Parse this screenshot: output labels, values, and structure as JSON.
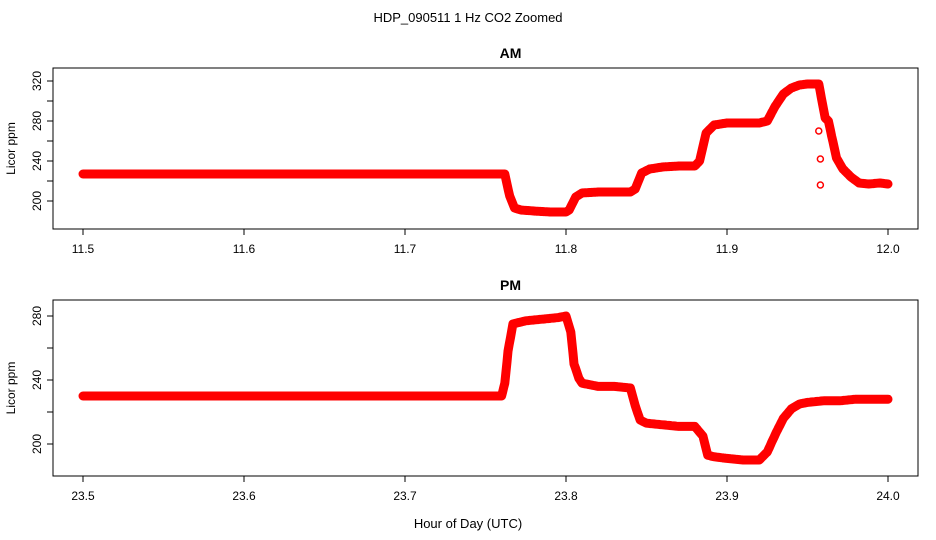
{
  "page": {
    "title": "HDP_090511  1 Hz CO2 Zoomed",
    "xlabel": "Hour of Day (UTC)"
  },
  "chart_data": [
    {
      "type": "scatter",
      "title": "AM",
      "xlabel": "",
      "ylabel": "Licor ppm",
      "xlim": [
        11.5,
        12.0
      ],
      "ylim": [
        180,
        325
      ],
      "x_ticks": [
        "11.5",
        "11.6",
        "11.7",
        "11.8",
        "11.9",
        "12.0"
      ],
      "y_ticks": [
        "200",
        "240",
        "280",
        "320"
      ],
      "y_minor_ticks": [
        220,
        260,
        300
      ],
      "grid": false,
      "color": "#ff0000",
      "marker": "open-circle",
      "x": [
        11.5,
        11.55,
        11.6,
        11.65,
        11.7,
        11.75,
        11.762,
        11.765,
        11.768,
        11.772,
        11.78,
        11.79,
        11.8,
        11.802,
        11.806,
        11.81,
        11.82,
        11.83,
        11.84,
        11.843,
        11.847,
        11.852,
        11.86,
        11.87,
        11.88,
        11.883,
        11.887,
        11.892,
        11.9,
        11.91,
        11.92,
        11.925,
        11.93,
        11.935,
        11.94,
        11.945,
        11.95,
        11.957,
        11.961,
        11.963,
        11.965,
        11.968,
        11.972,
        11.977,
        11.982,
        11.988,
        11.995,
        12.0
      ],
      "y": [
        227,
        227,
        227,
        227,
        227,
        227,
        227,
        205,
        193,
        191,
        190,
        189,
        189,
        191,
        204,
        208,
        209,
        209,
        209,
        212,
        228,
        232,
        234,
        235,
        235,
        240,
        268,
        276,
        278,
        278,
        278,
        280,
        295,
        307,
        313,
        316,
        317,
        317,
        283,
        280,
        265,
        243,
        232,
        224,
        218,
        217,
        218,
        217
      ],
      "outliers": [
        {
          "x": 11.957,
          "y": 270
        },
        {
          "x": 11.958,
          "y": 242
        },
        {
          "x": 11.958,
          "y": 216
        }
      ]
    },
    {
      "type": "scatter",
      "title": "PM",
      "xlabel": "Hour of Day (UTC)",
      "ylabel": "Licor ppm",
      "xlim": [
        23.5,
        24.0
      ],
      "ylim": [
        185,
        285
      ],
      "x_ticks": [
        "23.5",
        "23.6",
        "23.7",
        "23.8",
        "23.9",
        "24.0"
      ],
      "y_ticks": [
        "200",
        "240",
        "280"
      ],
      "y_minor_ticks": [
        220,
        260
      ],
      "grid": false,
      "color": "#ff0000",
      "marker": "open-circle",
      "x": [
        23.5,
        23.55,
        23.6,
        23.65,
        23.7,
        23.75,
        23.76,
        23.762,
        23.764,
        23.767,
        23.775,
        23.785,
        23.795,
        23.8,
        23.803,
        23.805,
        23.808,
        23.81,
        23.815,
        23.82,
        23.83,
        23.84,
        23.843,
        23.846,
        23.85,
        23.86,
        23.87,
        23.88,
        23.885,
        23.888,
        23.892,
        23.9,
        23.91,
        23.92,
        23.925,
        23.93,
        23.935,
        23.94,
        23.945,
        23.95,
        23.96,
        23.97,
        23.98,
        23.99,
        24.0
      ],
      "y": [
        230,
        230,
        230,
        230,
        230,
        230,
        230,
        238,
        258,
        275,
        277,
        278,
        279,
        280,
        270,
        250,
        241,
        238,
        237,
        236,
        236,
        235,
        224,
        215,
        213,
        212,
        211,
        211,
        205,
        193,
        192,
        191,
        190,
        190,
        195,
        206,
        216,
        222,
        225,
        226,
        227,
        227,
        228,
        228,
        228
      ],
      "outliers": []
    }
  ]
}
